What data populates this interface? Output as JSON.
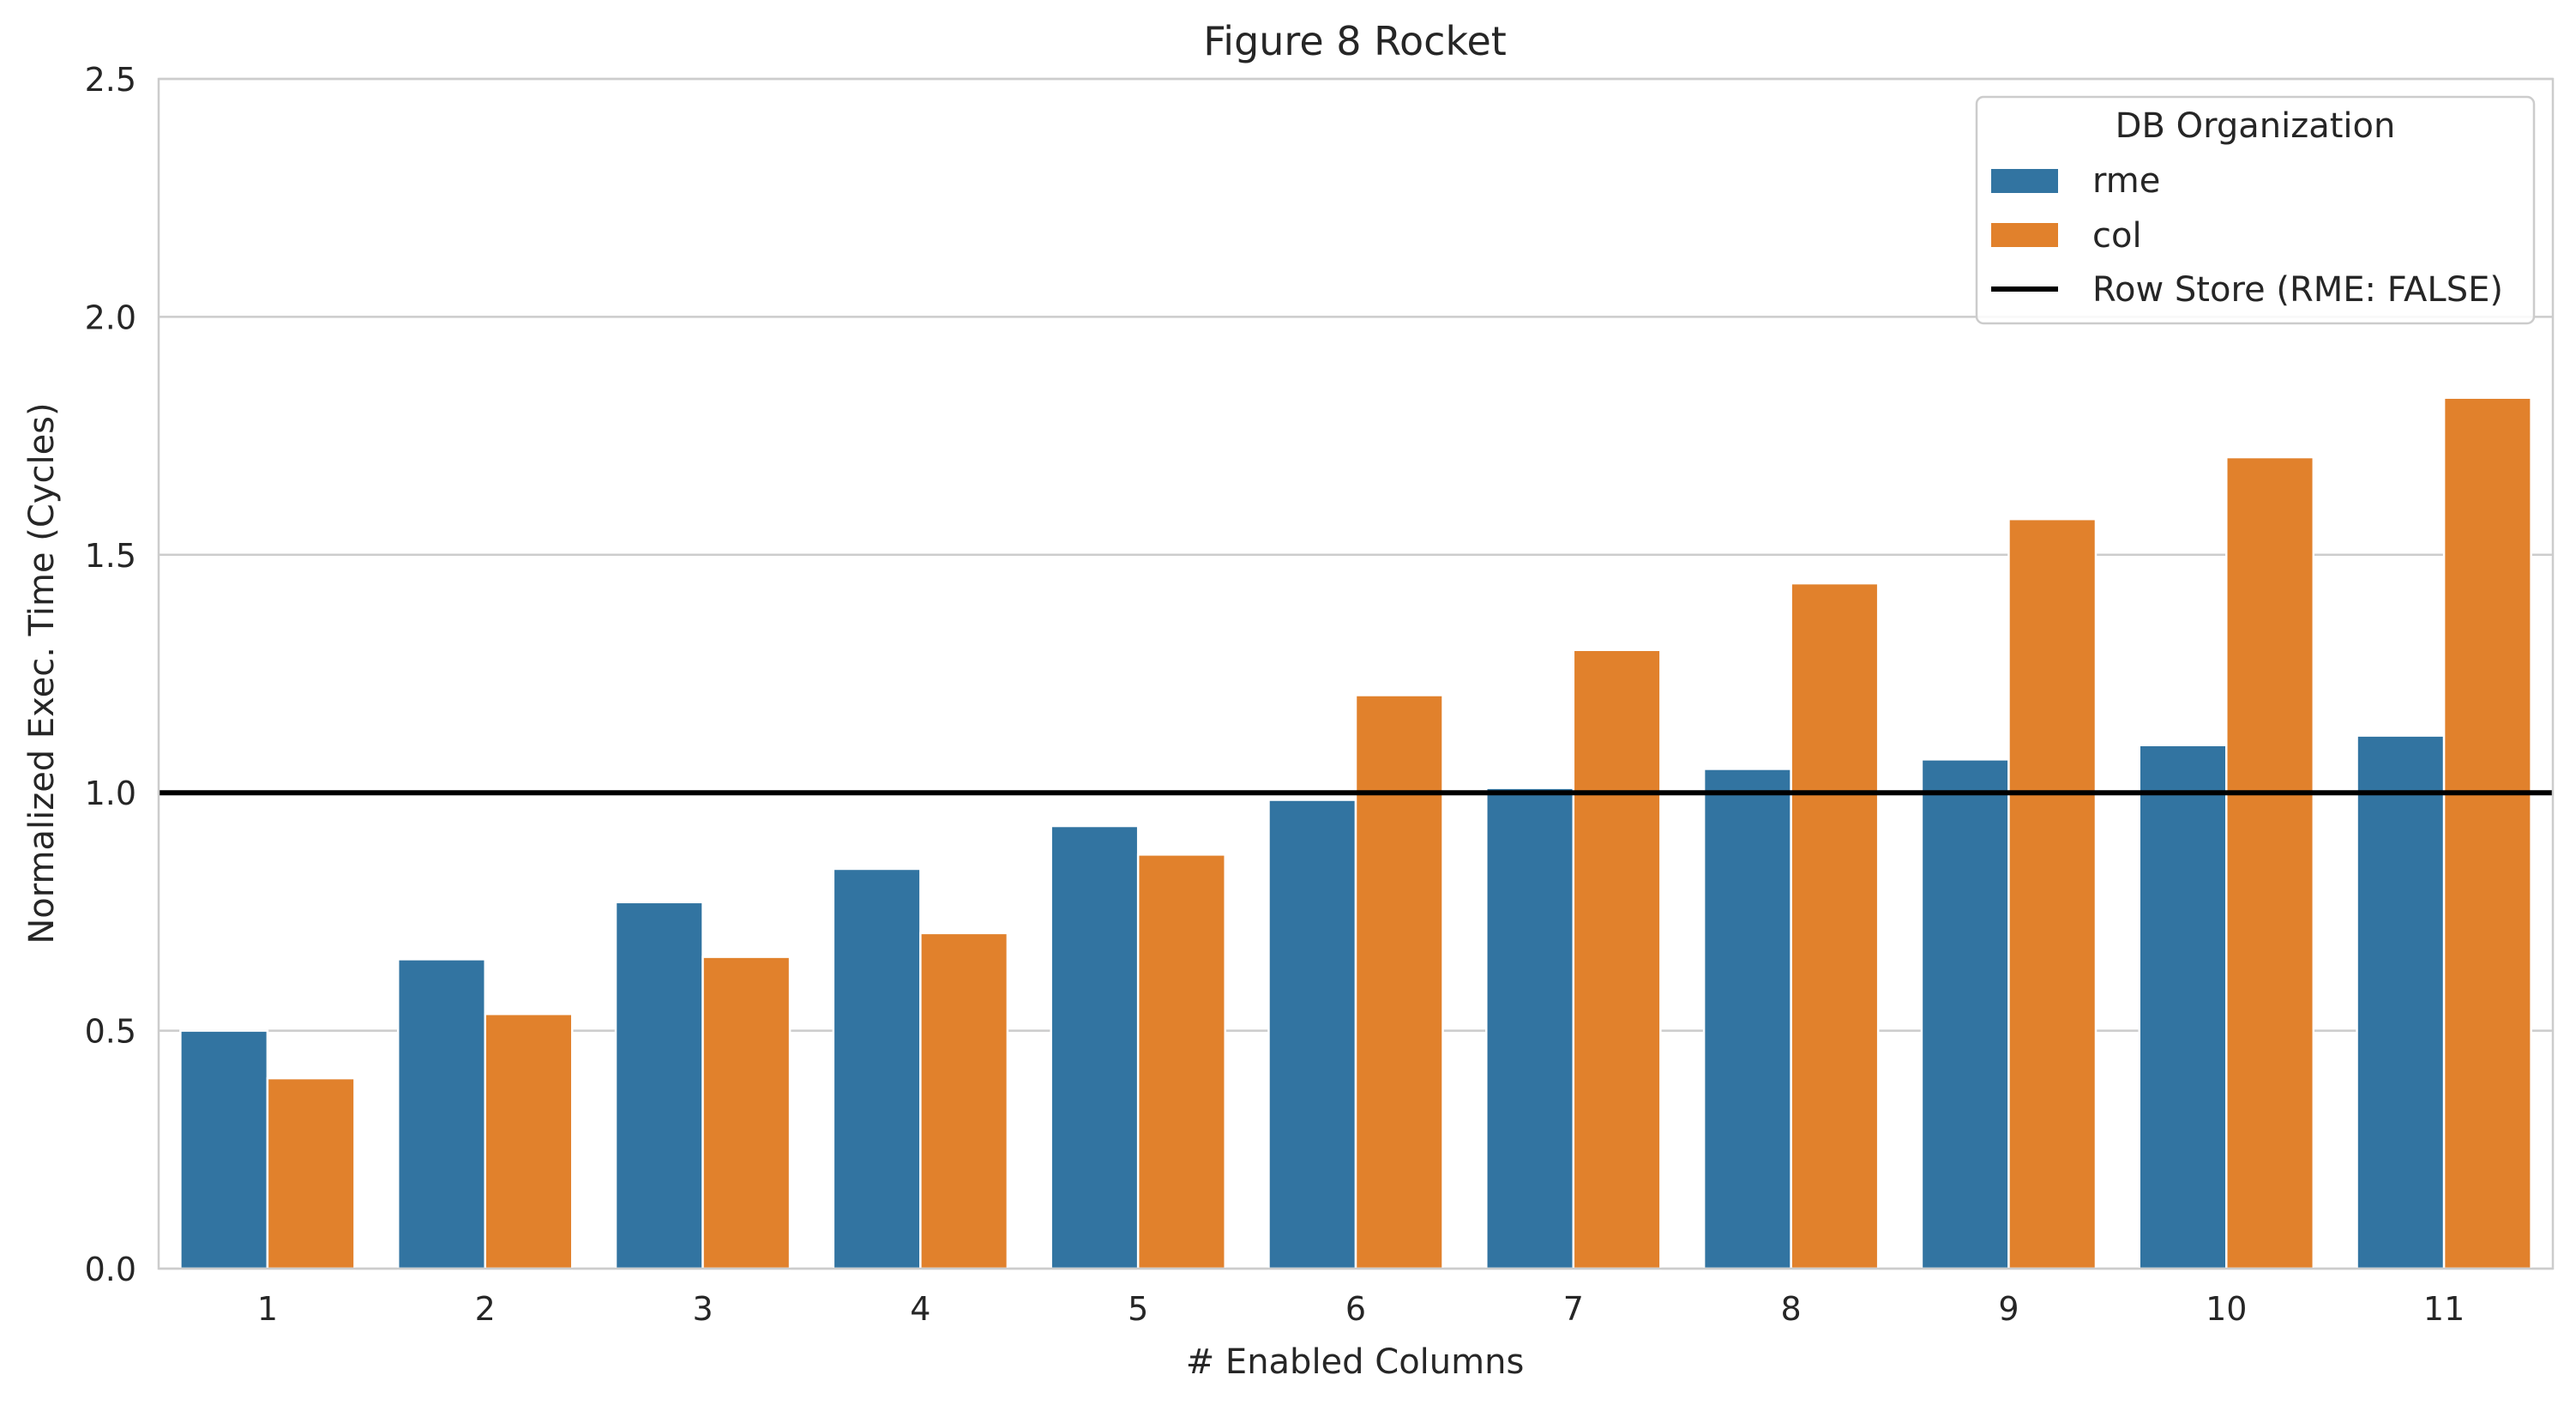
{
  "chart_data": {
    "type": "bar",
    "title": "Figure 8 Rocket",
    "xlabel": "# Enabled Columns",
    "ylabel": "Normalized Exec. Time (Cycles)",
    "ylim": [
      0,
      2.5
    ],
    "yticks": [
      "0.0",
      "0.5",
      "1.0",
      "1.5",
      "2.0",
      "2.5"
    ],
    "ytick_values": [
      0,
      0.5,
      1.0,
      1.5,
      2.0,
      2.5
    ],
    "grid": "horizontal",
    "categories": [
      "1",
      "2",
      "3",
      "4",
      "5",
      "6",
      "7",
      "8",
      "9",
      "10",
      "11"
    ],
    "series": [
      {
        "name": "rme",
        "color": "#3274a1",
        "values": [
          0.5,
          0.65,
          0.77,
          0.84,
          0.93,
          0.985,
          1.01,
          1.05,
          1.07,
          1.1,
          1.12
        ]
      },
      {
        "name": "col",
        "color": "#e1812c",
        "values": [
          0.4,
          0.535,
          0.655,
          0.705,
          0.87,
          1.205,
          1.3,
          1.44,
          1.575,
          1.705,
          1.83
        ]
      }
    ],
    "reference_line": {
      "name": "Row Store (RME: FALSE)",
      "value": 1.0,
      "color": "#000000"
    },
    "legend": {
      "title": "DB Organization",
      "placement": "top-right"
    }
  }
}
